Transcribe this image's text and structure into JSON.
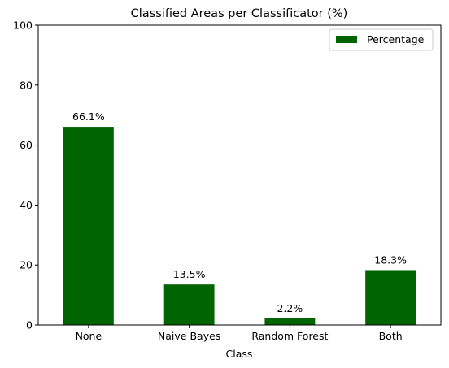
{
  "chart_data": {
    "type": "bar",
    "title": "Classified Areas per Classificator (%)",
    "xlabel": "Class",
    "ylabel": "",
    "categories": [
      "None",
      "Naive Bayes",
      "Random Forest",
      "Both"
    ],
    "series": [
      {
        "name": "Percentage",
        "values": [
          66.1,
          13.5,
          2.2,
          18.3
        ],
        "labels": [
          "66.1%",
          "13.5%",
          "2.2%",
          "18.3%"
        ],
        "color": "#006400"
      }
    ],
    "ylim": [
      0,
      100
    ],
    "yticks": [
      0,
      20,
      40,
      60,
      80,
      100
    ],
    "grid": false,
    "legend_position": "top-right"
  }
}
